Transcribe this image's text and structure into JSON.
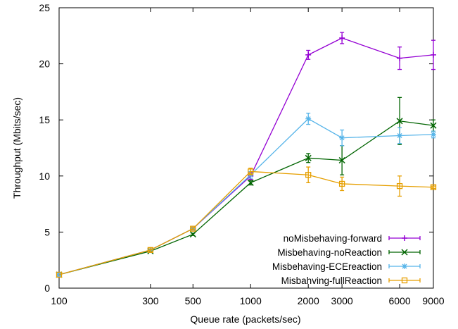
{
  "chart_data": {
    "type": "line",
    "title": "",
    "xlabel": "Queue rate (packets/sec)",
    "ylabel": "Throughput (Mbits/sec)",
    "x_scale": "log",
    "xlim": [
      100,
      9000
    ],
    "ylim": [
      0,
      25
    ],
    "x_ticks": [
      100,
      300,
      500,
      1000,
      2000,
      3000,
      6000,
      9000
    ],
    "y_ticks": [
      0,
      5,
      10,
      15,
      20,
      25
    ],
    "grid": false,
    "legend_position": "bottom-right",
    "series": [
      {
        "name": "noMisbehaving-forward",
        "color": "#9400d3",
        "marker": "plus",
        "x": [
          100,
          300,
          500,
          1000,
          2000,
          3000,
          6000,
          9000
        ],
        "y": [
          1.2,
          3.4,
          5.3,
          10.0,
          20.8,
          22.3,
          20.5,
          20.8
        ],
        "err": [
          0,
          0.1,
          0.1,
          0.3,
          0.4,
          0.5,
          1.0,
          1.3
        ]
      },
      {
        "name": "Misbehaving-noReaction",
        "color": "#006400",
        "marker": "cross",
        "x": [
          100,
          300,
          500,
          1000,
          2000,
          3000,
          6000,
          9000
        ],
        "y": [
          1.2,
          3.3,
          4.8,
          9.4,
          11.6,
          11.4,
          14.9,
          14.5
        ],
        "err": [
          0,
          0.1,
          0.1,
          0.2,
          0.4,
          1.3,
          2.1,
          0.5
        ]
      },
      {
        "name": "Misbehaving-ECEreaction",
        "color": "#56b4e9",
        "marker": "star",
        "x": [
          100,
          300,
          500,
          1000,
          2000,
          3000,
          6000,
          9000
        ],
        "y": [
          1.2,
          3.4,
          5.3,
          10.1,
          15.1,
          13.4,
          13.6,
          13.7
        ],
        "err": [
          0,
          0.1,
          0.1,
          0.3,
          0.5,
          0.7,
          0.7,
          0.3
        ]
      },
      {
        "name": "Misbahving-fullReaction",
        "color": "#e69f00",
        "marker": "square",
        "x": [
          100,
          300,
          500,
          1000,
          2000,
          3000,
          6000,
          9000
        ],
        "y": [
          1.2,
          3.4,
          5.3,
          10.4,
          10.1,
          9.3,
          9.1,
          9.0
        ],
        "err": [
          0,
          0.1,
          0.1,
          0.3,
          0.7,
          0.6,
          0.9,
          0.1
        ]
      }
    ]
  }
}
